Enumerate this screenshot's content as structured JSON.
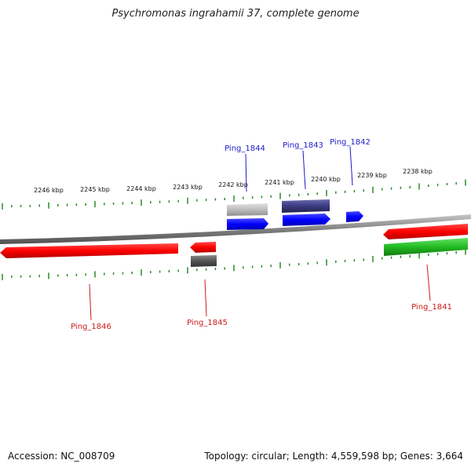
{
  "header": {
    "title": "Psychromonas ingrahamii 37, complete genome"
  },
  "footer": {
    "accession": "Accession: NC_008709",
    "topology": "Topology: circular; Length: 4,559,598 bp; Genes: 3,664"
  },
  "map": {
    "scale_labels": [
      "2246 kbp",
      "2245 kbp",
      "2244 kbp",
      "2243 kbp",
      "2242 kbp",
      "2241 kbp",
      "2240 kbp",
      "2239 kbp",
      "2238 kbp"
    ],
    "genes_top": [
      {
        "name": "Ping_1844",
        "color": "#1a1acc"
      },
      {
        "name": "Ping_1843",
        "color": "#1a1acc"
      },
      {
        "name": "Ping_1842",
        "color": "#1a1acc"
      }
    ],
    "genes_bottom": [
      {
        "name": "Ping_1846",
        "color": "#cc1a1a"
      },
      {
        "name": "Ping_1845",
        "color": "#cc1a1a"
      },
      {
        "name": "Ping_1841",
        "color": "#cc1a1a"
      }
    ],
    "colors": {
      "forward_cds": "#0000ff",
      "reverse_cds": "#ff0000",
      "gene_forward": "#3a3a80",
      "gene_gray": "#bdbdbd",
      "gene_dark": "#555555",
      "rna_green": "#22bb22",
      "tick": "#2a8a2a",
      "backbone": "#808080"
    }
  }
}
